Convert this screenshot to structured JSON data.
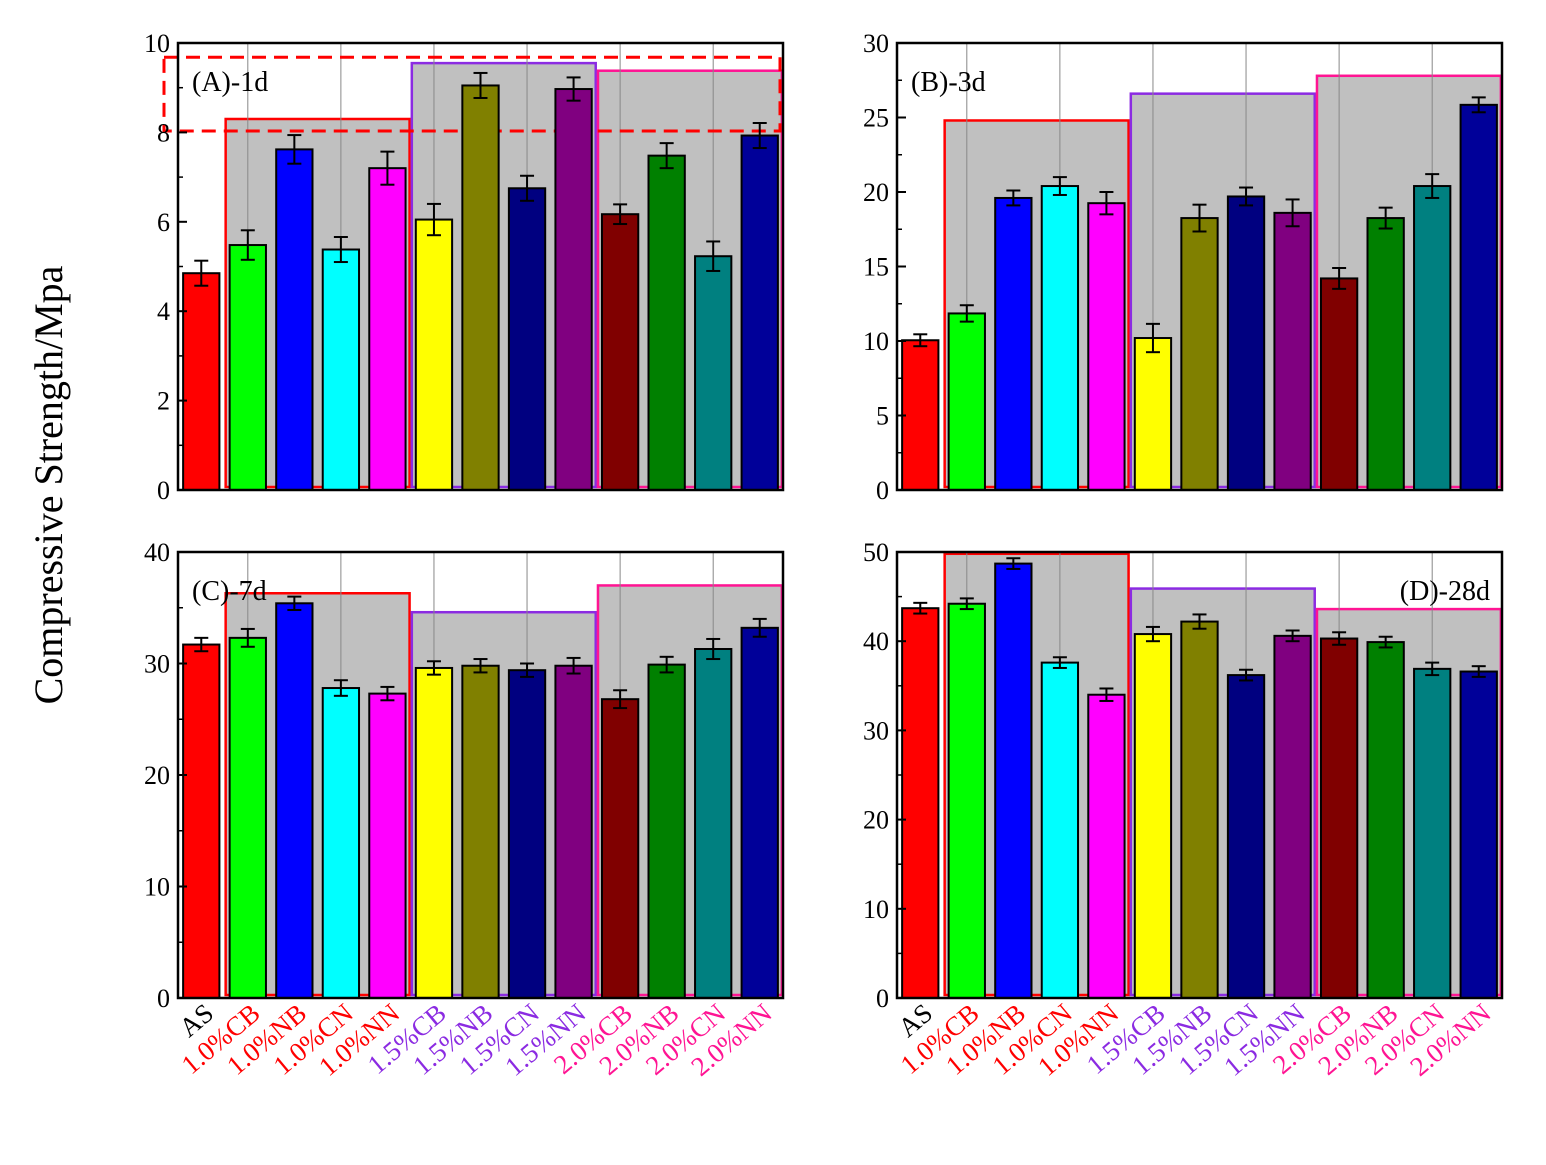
{
  "y_axis_label": "Compressive Strength/Mpa",
  "categories": [
    "AS",
    "1.0%CB",
    "1.0%NB",
    "1.0%CN",
    "1.0%NN",
    "1.5%CB",
    "1.5%NB",
    "1.5%CN",
    "1.5%NN",
    "2.0%CB",
    "2.0%NB",
    "2.0%CN",
    "2.0%NN"
  ],
  "category_colors": [
    "#000000",
    "#ff0000",
    "#ff0000",
    "#ff0000",
    "#ff0000",
    "#8b2be2",
    "#8b2be2",
    "#8b2be2",
    "#8b2be2",
    "#ff1493",
    "#ff1493",
    "#ff1493",
    "#ff1493"
  ],
  "bar_colors": [
    "#ff0000",
    "#00ff00",
    "#0000ff",
    "#00ffff",
    "#ff00ff",
    "#ffff00",
    "#808000",
    "#000080",
    "#800080",
    "#800000",
    "#008000",
    "#008080",
    "#000099"
  ],
  "group_frame_colors": [
    "#ff0000",
    "#8b2be2",
    "#ff1493"
  ],
  "highlight_fill": "#c0c0c0",
  "chart_data": [
    {
      "type": "bar",
      "title": "(A)-1d",
      "title_position": "top-left",
      "ylim": [
        0,
        10
      ],
      "yticks": [
        0,
        2,
        4,
        6,
        8,
        10
      ],
      "values": [
        4.85,
        5.48,
        7.62,
        5.38,
        7.2,
        6.05,
        9.05,
        6.75,
        8.97,
        6.17,
        7.48,
        5.23,
        7.93
      ],
      "errors": [
        0.28,
        0.33,
        0.32,
        0.28,
        0.37,
        0.35,
        0.28,
        0.28,
        0.26,
        0.22,
        0.28,
        0.33,
        0.28
      ],
      "group_frame_tops": [
        8.3,
        9.55,
        9.38
      ],
      "dashed_box": [
        8.03,
        9.68
      ]
    },
    {
      "type": "bar",
      "title": "(B)-3d",
      "title_position": "top-left",
      "ylim": [
        0,
        30
      ],
      "yticks": [
        0,
        5,
        10,
        15,
        20,
        25,
        30
      ],
      "values": [
        10.05,
        11.85,
        19.6,
        20.4,
        19.25,
        10.2,
        18.25,
        19.7,
        18.6,
        14.2,
        18.25,
        20.4,
        25.85
      ],
      "errors": [
        0.4,
        0.55,
        0.5,
        0.6,
        0.75,
        0.95,
        0.9,
        0.6,
        0.9,
        0.7,
        0.7,
        0.8,
        0.5
      ],
      "group_frame_tops": [
        24.8,
        26.6,
        27.8
      ]
    },
    {
      "type": "bar",
      "title": "(C)-7d",
      "title_position": "top-left",
      "ylim": [
        0,
        40
      ],
      "yticks": [
        0,
        10,
        20,
        30,
        40
      ],
      "values": [
        31.7,
        32.3,
        35.4,
        27.8,
        27.3,
        29.6,
        29.8,
        29.4,
        29.8,
        26.8,
        29.9,
        31.3,
        33.2
      ],
      "errors": [
        0.6,
        0.8,
        0.6,
        0.7,
        0.6,
        0.6,
        0.6,
        0.6,
        0.7,
        0.8,
        0.7,
        0.9,
        0.8
      ],
      "group_frame_tops": [
        36.3,
        34.6,
        37.0
      ]
    },
    {
      "type": "bar",
      "title": "(D)-28d",
      "title_position": "top-right",
      "ylim": [
        0,
        50
      ],
      "yticks": [
        0,
        10,
        20,
        30,
        40,
        50
      ],
      "values": [
        43.7,
        44.2,
        48.7,
        37.6,
        34.0,
        40.8,
        42.2,
        36.2,
        40.6,
        40.3,
        39.9,
        36.9,
        36.6
      ],
      "errors": [
        0.6,
        0.6,
        0.6,
        0.6,
        0.7,
        0.8,
        0.8,
        0.6,
        0.6,
        0.7,
        0.6,
        0.7,
        0.6
      ],
      "group_frame_tops": [
        49.8,
        45.9,
        43.6
      ]
    }
  ]
}
